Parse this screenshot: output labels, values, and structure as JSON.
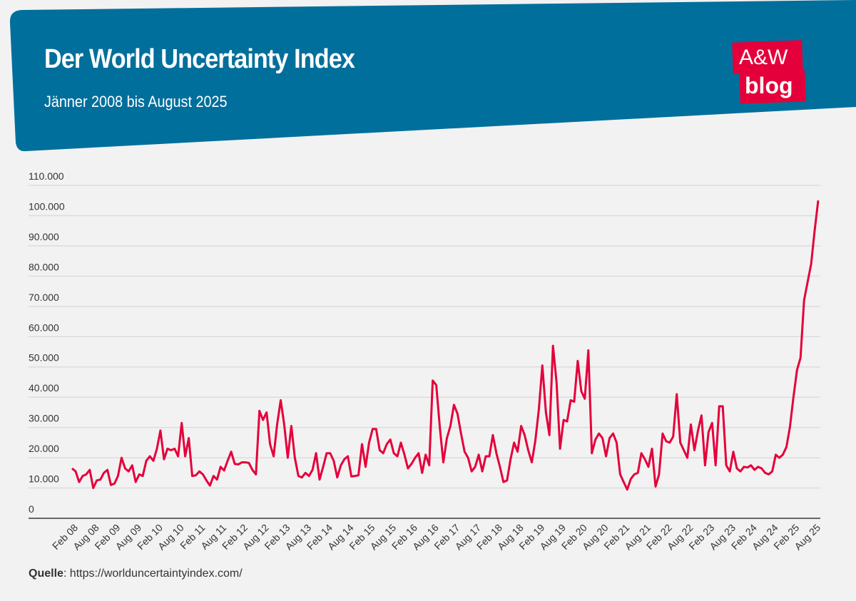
{
  "header": {
    "title": "Der World Uncertainty Index",
    "subtitle": "Jänner 2008 bis August 2025",
    "background": "#006f9c"
  },
  "logo": {
    "line1": "A&W",
    "line2": "blog",
    "color": "#e4003a"
  },
  "source": {
    "label": "Quelle",
    "text": ": https://worlduncertaintyindex.com/"
  },
  "chart_data": {
    "type": "line",
    "title": "Der World Uncertainty Index",
    "subtitle": "Jänner 2008 bis August 2025",
    "x_start": "2008-01",
    "x_end": "2025-08",
    "x_frequency": "monthly",
    "ylim": [
      0,
      110000
    ],
    "yticks": [
      0,
      10000,
      20000,
      30000,
      40000,
      50000,
      60000,
      70000,
      80000,
      90000,
      100000,
      110000
    ],
    "ytick_labels": [
      "0",
      "10.000",
      "20.000",
      "30.000",
      "40.000",
      "50.000",
      "60.000",
      "70.000",
      "80.000",
      "90.000",
      "100.000",
      "110.000"
    ],
    "xtick_labels": [
      "Feb 08",
      "Aug 08",
      "Feb 09",
      "Aug 09",
      "Feb 10",
      "Aug 10",
      "Feb 11",
      "Aug 11",
      "Feb 12",
      "Aug 12",
      "Feb 13",
      "Aug 13",
      "Feb 14",
      "Aug 14",
      "Feb 15",
      "Aug 15",
      "Feb 16",
      "Aug 16",
      "Feb 17",
      "Aug 17",
      "Feb 18",
      "Aug 18",
      "Feb 19",
      "Aug 19",
      "Feb 20",
      "Aug 20",
      "Feb 21",
      "Aug 21",
      "Feb 22",
      "Aug 22",
      "Feb 23",
      "Aug 23",
      "Feb 24",
      "Aug 24",
      "Feb 25",
      "Aug 25"
    ],
    "grid": true,
    "line_color": "#e4003a",
    "values": [
      16500,
      15500,
      12000,
      14000,
      14500,
      16000,
      10000,
      12500,
      12800,
      15000,
      16000,
      11000,
      11500,
      14000,
      20000,
      16500,
      15500,
      17500,
      12000,
      14500,
      14000,
      19000,
      20500,
      19000,
      23000,
      29000,
      19500,
      23000,
      22500,
      23000,
      20500,
      31500,
      20500,
      26500,
      14000,
      14200,
      15500,
      14500,
      12500,
      10800,
      14000,
      12800,
      17000,
      15800,
      19000,
      22000,
      18000,
      17800,
      18500,
      18500,
      18300,
      16000,
      14500,
      35500,
      32500,
      35000,
      24500,
      20500,
      31000,
      39000,
      31000,
      20000,
      30500,
      20000,
      14000,
      13500,
      15000,
      14000,
      16000,
      21500,
      12800,
      17000,
      21500,
      21500,
      19000,
      13500,
      17500,
      19500,
      20500,
      13800,
      14000,
      14200,
      24500,
      17000,
      25000,
      29500,
      29500,
      22500,
      21500,
      24500,
      26000,
      21500,
      20500,
      25000,
      21000,
      16500,
      18000,
      20000,
      21500,
      15000,
      21000,
      17500,
      45500,
      44000,
      30000,
      18500,
      26500,
      30500,
      37500,
      34500,
      28000,
      22000,
      20000,
      15500,
      17000,
      21000,
      15500,
      20500,
      20500,
      27500,
      21500,
      17000,
      12000,
      12500,
      19500,
      25000,
      22000,
      30500,
      27500,
      22500,
      18500,
      25500,
      36000,
      50500,
      35000,
      27500,
      57000,
      45000,
      23000,
      32500,
      32000,
      39000,
      38500,
      52000,
      42000,
      39500,
      55500,
      21500,
      26000,
      28000,
      26500,
      20500,
      26500,
      28000,
      25000,
      14500,
      12000,
      9500,
      13000,
      14500,
      15000,
      21500,
      19500,
      17000,
      23000,
      10500,
      14500,
      28000,
      25500,
      25000,
      27000,
      41000,
      25000,
      22500,
      20000,
      31000,
      22500,
      29000,
      34000,
      17500,
      28500,
      31500,
      17500,
      37000,
      37000,
      17500,
      15500,
      22000,
      16500,
      15500,
      17000,
      16800,
      17500,
      16000,
      17000,
      16500,
      15000,
      14500,
      15500,
      21000,
      20000,
      21000,
      23500,
      30000,
      40000,
      49000,
      53000,
      72000,
      78000,
      84000,
      95000,
      105000
    ]
  }
}
